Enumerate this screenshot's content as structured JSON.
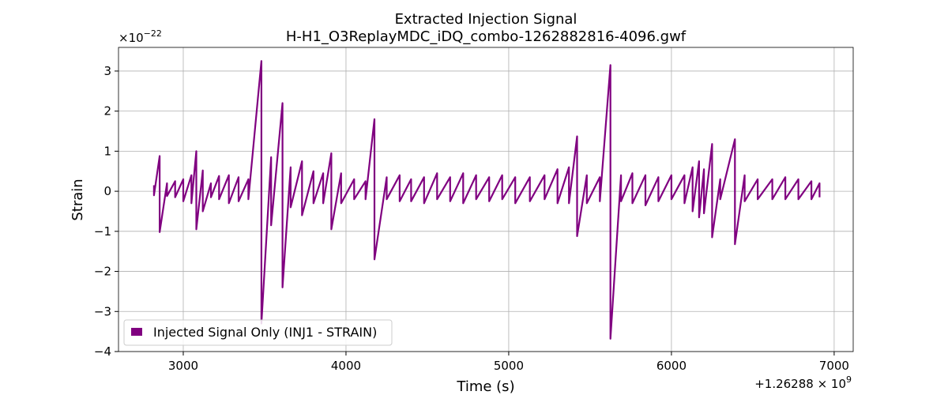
{
  "chart_data": {
    "type": "line",
    "title": [
      "Extracted Injection Signal",
      "H-H1_O3ReplayMDC_iDQ_combo-1262882816-4096.gwf"
    ],
    "xlabel": "Time (s)",
    "ylabel": "Strain",
    "y_multiplier": {
      "base": "×10",
      "exponent": "−22"
    },
    "x_offset": {
      "base": "+1.26288 × 10",
      "exponent": "9"
    },
    "x": [
      2820,
      2820,
      2855,
      2855,
      2900,
      2900,
      2950,
      2950,
      3000,
      3000,
      3050,
      3050,
      3080,
      3080,
      3120,
      3120,
      3170,
      3170,
      3220,
      3220,
      3280,
      3280,
      3340,
      3340,
      3400,
      3400,
      3480,
      3480,
      3540,
      3540,
      3610,
      3610,
      3660,
      3660,
      3730,
      3730,
      3800,
      3800,
      3860,
      3860,
      3910,
      3910,
      3970,
      3970,
      4050,
      4050,
      4120,
      4120,
      4175,
      4175,
      4250,
      4250,
      4330,
      4330,
      4400,
      4400,
      4480,
      4480,
      4560,
      4560,
      4640,
      4640,
      4720,
      4720,
      4800,
      4800,
      4880,
      4880,
      4960,
      4960,
      5040,
      5040,
      5130,
      5130,
      5220,
      5220,
      5300,
      5300,
      5370,
      5370,
      5420,
      5420,
      5480,
      5480,
      5560,
      5560,
      5625,
      5625,
      5690,
      5690,
      5760,
      5760,
      5840,
      5840,
      5920,
      5920,
      6000,
      6000,
      6080,
      6080,
      6130,
      6130,
      6170,
      6170,
      6200,
      6200,
      6250,
      6250,
      6300,
      6300,
      6390,
      6390,
      6450,
      6450,
      6530,
      6530,
      6620,
      6620,
      6700,
      6700,
      6780,
      6780,
      6860,
      6860,
      6910,
      6910
    ],
    "series": [
      {
        "name": "Injected Signal Only (INJ1 - STRAIN)",
        "color": "#800080",
        "values": [
          0.15,
          -0.1,
          0.88,
          -1.02,
          0.2,
          -0.12,
          0.25,
          -0.15,
          0.3,
          -0.25,
          0.4,
          -0.3,
          1.0,
          -0.95,
          0.52,
          -0.5,
          0.2,
          -0.15,
          0.38,
          -0.2,
          0.4,
          -0.3,
          0.35,
          -0.25,
          0.3,
          -0.2,
          3.25,
          -3.3,
          0.85,
          -0.85,
          2.2,
          -2.4,
          0.6,
          -0.4,
          0.75,
          -0.6,
          0.5,
          -0.3,
          0.45,
          -0.3,
          0.95,
          -0.95,
          0.45,
          -0.3,
          0.3,
          -0.2,
          0.25,
          -0.2,
          1.8,
          -1.7,
          0.35,
          -0.2,
          0.4,
          -0.25,
          0.3,
          -0.25,
          0.35,
          -0.3,
          0.45,
          -0.2,
          0.35,
          -0.25,
          0.45,
          -0.3,
          0.4,
          -0.2,
          0.35,
          -0.25,
          0.4,
          -0.2,
          0.35,
          -0.3,
          0.35,
          -0.25,
          0.4,
          -0.2,
          0.55,
          -0.3,
          0.6,
          -0.3,
          1.37,
          -1.12,
          0.4,
          -0.3,
          0.35,
          -0.25,
          3.15,
          -3.68,
          0.4,
          -0.25,
          0.45,
          -0.3,
          0.4,
          -0.35,
          0.35,
          -0.25,
          0.4,
          -0.2,
          0.4,
          -0.3,
          0.6,
          -0.5,
          0.75,
          -0.65,
          0.55,
          -0.55,
          1.18,
          -1.15,
          0.3,
          -0.2,
          1.3,
          -1.32,
          0.4,
          -0.25,
          0.3,
          -0.2,
          0.3,
          -0.2,
          0.35,
          -0.2,
          0.3,
          -0.2,
          0.25,
          -0.2,
          0.2,
          -0.15
        ]
      }
    ],
    "xlim": [
      2602,
      7117
    ],
    "ylim": [
      -4,
      3.59
    ],
    "xticks": [
      3000,
      4000,
      5000,
      6000,
      7000
    ],
    "yticks": [
      {
        "value": -4,
        "label": "−4"
      },
      {
        "value": -3,
        "label": "−3"
      },
      {
        "value": -2,
        "label": "−2"
      },
      {
        "value": -1,
        "label": "−1"
      },
      0,
      1,
      2,
      3
    ],
    "grid": true,
    "legend": "lower left"
  }
}
